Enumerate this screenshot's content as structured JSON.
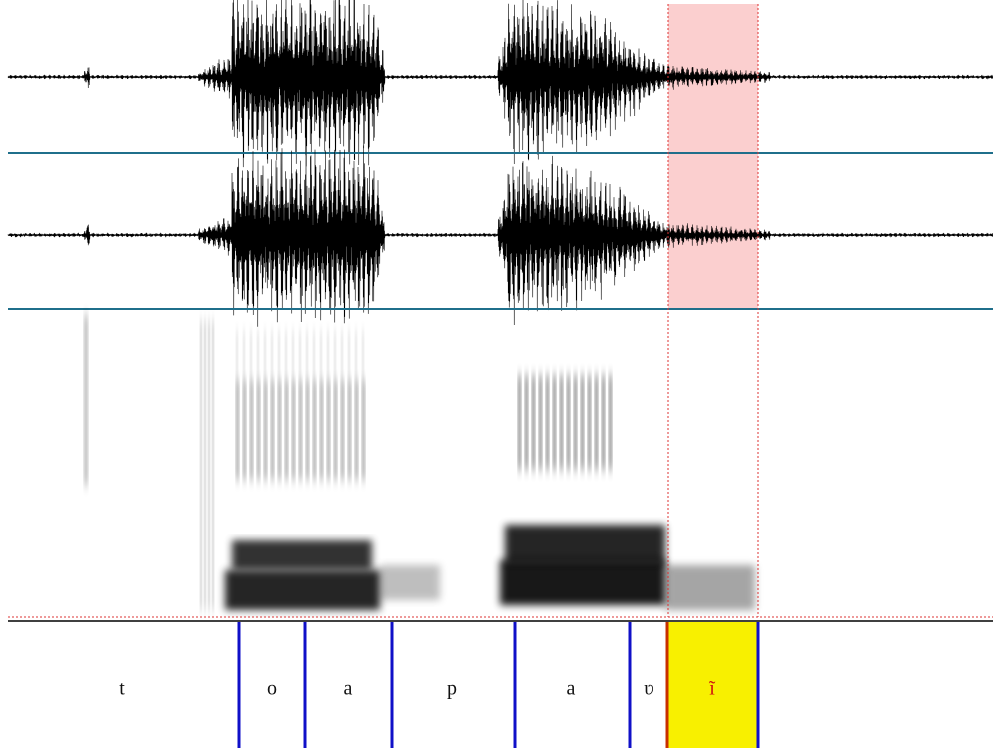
{
  "tier": {
    "intervals": [
      {
        "label": "t"
      },
      {
        "label": "o"
      },
      {
        "label": "a"
      },
      {
        "label": "p"
      },
      {
        "label": "a"
      },
      {
        "label": "ʋ"
      },
      {
        "label": "ĩ"
      }
    ]
  }
}
